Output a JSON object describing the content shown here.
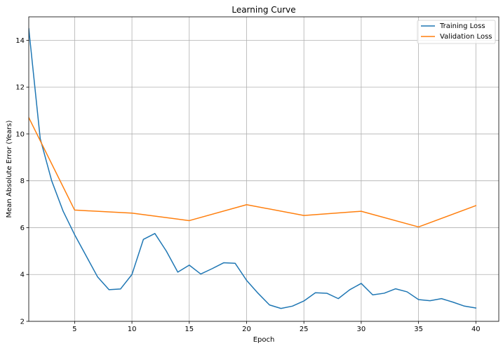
{
  "chart_data": {
    "type": "line",
    "title": "Learning Curve",
    "xlabel": "Epoch",
    "ylabel": "Mean Absolute Error (Years)",
    "xlim": [
      1,
      42
    ],
    "ylim": [
      2,
      15
    ],
    "xticks": [
      5,
      10,
      15,
      20,
      25,
      30,
      35,
      40
    ],
    "yticks": [
      2,
      4,
      6,
      8,
      10,
      12,
      14
    ],
    "grid": true,
    "legend_placement": "top-right",
    "series": [
      {
        "name": "Training Loss",
        "color": "#1f77b4",
        "x": [
          1,
          2,
          3,
          4,
          5,
          6,
          7,
          8,
          9,
          10,
          11,
          12,
          13,
          14,
          15,
          16,
          17,
          18,
          19,
          20,
          21,
          22,
          23,
          24,
          25,
          26,
          27,
          28,
          29,
          30,
          31,
          32,
          33,
          34,
          35,
          36,
          37,
          38,
          39,
          40
        ],
        "values": [
          14.5,
          9.8,
          8.0,
          6.7,
          5.7,
          4.8,
          3.9,
          3.35,
          3.38,
          4.0,
          5.5,
          5.75,
          5.0,
          4.1,
          4.4,
          4.02,
          4.25,
          4.5,
          4.48,
          3.75,
          3.2,
          2.7,
          2.55,
          2.65,
          2.87,
          3.22,
          3.2,
          2.97,
          3.35,
          3.62,
          3.13,
          3.2,
          3.39,
          3.26,
          2.93,
          2.88,
          2.97,
          2.82,
          2.65,
          2.57
        ]
      },
      {
        "name": "Validation Loss",
        "color": "#ff7f0e",
        "x": [
          1,
          5,
          10,
          15,
          20,
          25,
          30,
          35,
          40
        ],
        "values": [
          10.7,
          6.75,
          6.62,
          6.3,
          6.98,
          6.52,
          6.7,
          6.03,
          6.94
        ]
      }
    ]
  }
}
